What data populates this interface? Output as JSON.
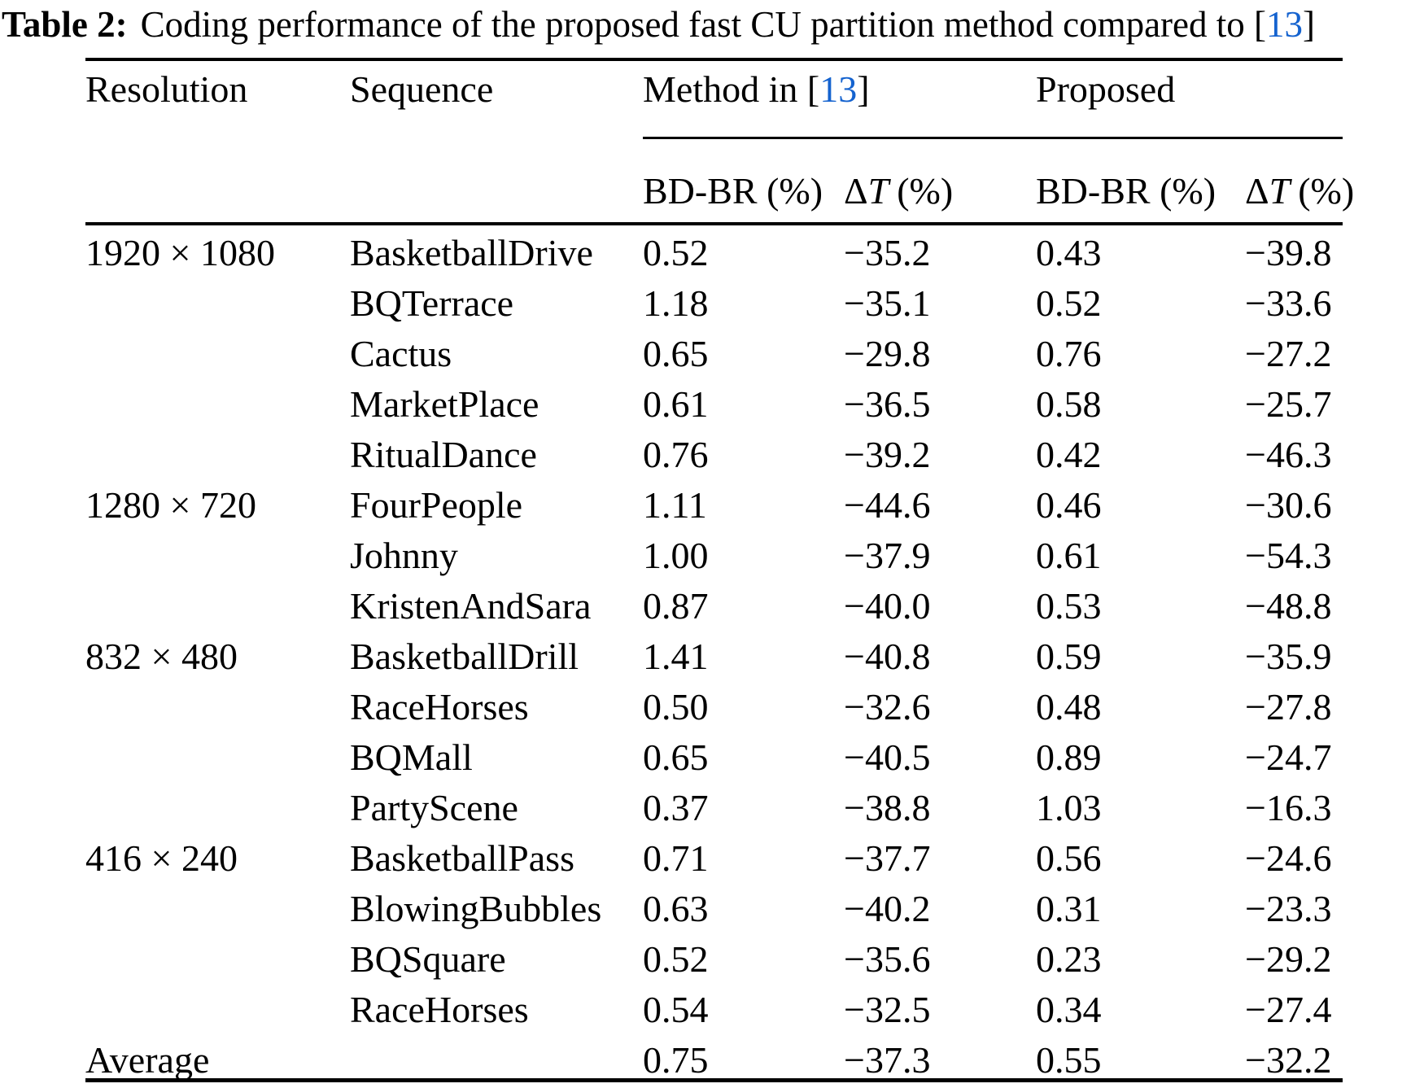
{
  "colors": {
    "citation_blue": "#1563cf",
    "text": "#000000",
    "background": "#ffffff"
  },
  "caption": {
    "label": "Table 2:",
    "text": "Coding performance of the proposed fast CU partition method compared to [",
    "citation": "13",
    "bracket_close": "]"
  },
  "table": {
    "headers": {
      "resolution": "Resolution",
      "sequence": "Sequence",
      "method13": {
        "pre": "Method in [",
        "cite": "13",
        "post": "]"
      },
      "proposed": "Proposed"
    },
    "subheader": {
      "bdbr": "BD-BR (%)",
      "delta": "Δ",
      "t_var": "T",
      "unit": "(%)"
    },
    "rows": [
      {
        "resolution": "1920 × 1080",
        "sequence": "BasketballDrive",
        "method13_bdbr": "0.52",
        "method13_dt": "−35.2",
        "proposed_bdbr": "0.43",
        "proposed_dt": "−39.8"
      },
      {
        "resolution": "",
        "sequence": "BQTerrace",
        "method13_bdbr": "1.18",
        "method13_dt": "−35.1",
        "proposed_bdbr": "0.52",
        "proposed_dt": "−33.6"
      },
      {
        "resolution": "",
        "sequence": "Cactus",
        "method13_bdbr": "0.65",
        "method13_dt": "−29.8",
        "proposed_bdbr": "0.76",
        "proposed_dt": "−27.2"
      },
      {
        "resolution": "",
        "sequence": "MarketPlace",
        "method13_bdbr": "0.61",
        "method13_dt": "−36.5",
        "proposed_bdbr": "0.58",
        "proposed_dt": "−25.7"
      },
      {
        "resolution": "",
        "sequence": "RitualDance",
        "method13_bdbr": "0.76",
        "method13_dt": "−39.2",
        "proposed_bdbr": "0.42",
        "proposed_dt": "−46.3"
      },
      {
        "resolution": "1280 × 720",
        "sequence": "FourPeople",
        "method13_bdbr": "1.11",
        "method13_dt": "−44.6",
        "proposed_bdbr": "0.46",
        "proposed_dt": "−30.6"
      },
      {
        "resolution": "",
        "sequence": "Johnny",
        "method13_bdbr": "1.00",
        "method13_dt": "−37.9",
        "proposed_bdbr": "0.61",
        "proposed_dt": "−54.3"
      },
      {
        "resolution": "",
        "sequence": "KristenAndSara",
        "method13_bdbr": "0.87",
        "method13_dt": "−40.0",
        "proposed_bdbr": "0.53",
        "proposed_dt": "−48.8"
      },
      {
        "resolution": "832 × 480",
        "sequence": "BasketballDrill",
        "method13_bdbr": "1.41",
        "method13_dt": "−40.8",
        "proposed_bdbr": "0.59",
        "proposed_dt": "−35.9"
      },
      {
        "resolution": "",
        "sequence": "RaceHorses",
        "method13_bdbr": "0.50",
        "method13_dt": "−32.6",
        "proposed_bdbr": "0.48",
        "proposed_dt": "−27.8"
      },
      {
        "resolution": "",
        "sequence": "BQMall",
        "method13_bdbr": "0.65",
        "method13_dt": "−40.5",
        "proposed_bdbr": "0.89",
        "proposed_dt": "−24.7"
      },
      {
        "resolution": "",
        "sequence": "PartyScene",
        "method13_bdbr": "0.37",
        "method13_dt": "−38.8",
        "proposed_bdbr": "1.03",
        "proposed_dt": "−16.3"
      },
      {
        "resolution": "416 × 240",
        "sequence": "BasketballPass",
        "method13_bdbr": "0.71",
        "method13_dt": "−37.7",
        "proposed_bdbr": "0.56",
        "proposed_dt": "−24.6"
      },
      {
        "resolution": "",
        "sequence": "BlowingBubbles",
        "method13_bdbr": "0.63",
        "method13_dt": "−40.2",
        "proposed_bdbr": "0.31",
        "proposed_dt": "−23.3"
      },
      {
        "resolution": "",
        "sequence": "BQSquare",
        "method13_bdbr": "0.52",
        "method13_dt": "−35.6",
        "proposed_bdbr": "0.23",
        "proposed_dt": "−29.2"
      },
      {
        "resolution": "",
        "sequence": "RaceHorses",
        "method13_bdbr": "0.54",
        "method13_dt": "−32.5",
        "proposed_bdbr": "0.34",
        "proposed_dt": "−27.4"
      },
      {
        "resolution": "Average",
        "sequence": "",
        "method13_bdbr": "0.75",
        "method13_dt": "−37.3",
        "proposed_bdbr": "0.55",
        "proposed_dt": "−32.2"
      }
    ]
  }
}
